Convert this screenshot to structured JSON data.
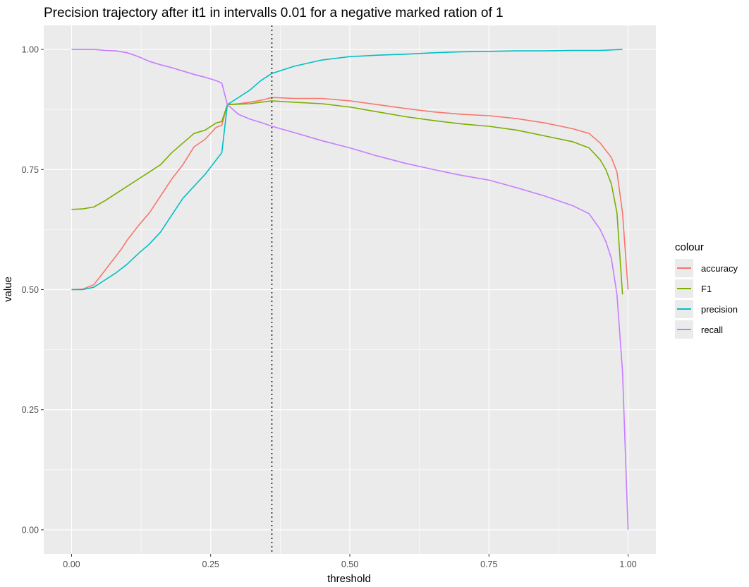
{
  "chart_data": {
    "type": "line",
    "title": "Precision trajectory after it1 in intervalls 0.01 for a negative marked ration of 1",
    "xlabel": "threshold",
    "ylabel": "value",
    "xlim": [
      -0.05,
      1.05
    ],
    "ylim": [
      -0.05,
      1.05
    ],
    "x_ticks": [
      0,
      0.25,
      0.5,
      0.75,
      1
    ],
    "x_tick_labels": [
      "0.00",
      "0.25",
      "0.50",
      "0.75",
      "1.00"
    ],
    "y_ticks": [
      0,
      0.25,
      0.5,
      0.75,
      1
    ],
    "y_tick_labels": [
      "0.00",
      "0.25",
      "0.50",
      "0.75",
      "1.00"
    ],
    "vline": 0.36,
    "legend": {
      "title": "colour",
      "position": "right",
      "entries": [
        "accuracy",
        "F1",
        "precision",
        "recall"
      ]
    },
    "series": [
      {
        "name": "accuracy",
        "color": "#F8766D",
        "points": [
          [
            0,
            0.5
          ],
          [
            0.02,
            0.501
          ],
          [
            0.04,
            0.51
          ],
          [
            0.05,
            0.525
          ],
          [
            0.07,
            0.555
          ],
          [
            0.09,
            0.585
          ],
          [
            0.1,
            0.603
          ],
          [
            0.12,
            0.633
          ],
          [
            0.14,
            0.66
          ],
          [
            0.16,
            0.695
          ],
          [
            0.18,
            0.73
          ],
          [
            0.2,
            0.76
          ],
          [
            0.22,
            0.797
          ],
          [
            0.24,
            0.813
          ],
          [
            0.26,
            0.838
          ],
          [
            0.27,
            0.842
          ],
          [
            0.28,
            0.885
          ],
          [
            0.3,
            0.887
          ],
          [
            0.32,
            0.89
          ],
          [
            0.34,
            0.894
          ],
          [
            0.36,
            0.9
          ],
          [
            0.4,
            0.898
          ],
          [
            0.45,
            0.898
          ],
          [
            0.5,
            0.893
          ],
          [
            0.55,
            0.885
          ],
          [
            0.6,
            0.877
          ],
          [
            0.65,
            0.87
          ],
          [
            0.7,
            0.865
          ],
          [
            0.75,
            0.862
          ],
          [
            0.8,
            0.856
          ],
          [
            0.85,
            0.847
          ],
          [
            0.9,
            0.835
          ],
          [
            0.93,
            0.825
          ],
          [
            0.95,
            0.805
          ],
          [
            0.97,
            0.775
          ],
          [
            0.98,
            0.745
          ],
          [
            0.99,
            0.66
          ],
          [
            1.0,
            0.5
          ]
        ]
      },
      {
        "name": "F1",
        "color": "#7CAE00",
        "points": [
          [
            0,
            0.667
          ],
          [
            0.02,
            0.668
          ],
          [
            0.04,
            0.672
          ],
          [
            0.06,
            0.685
          ],
          [
            0.08,
            0.7
          ],
          [
            0.1,
            0.715
          ],
          [
            0.12,
            0.73
          ],
          [
            0.14,
            0.745
          ],
          [
            0.16,
            0.76
          ],
          [
            0.18,
            0.785
          ],
          [
            0.2,
            0.805
          ],
          [
            0.22,
            0.825
          ],
          [
            0.24,
            0.832
          ],
          [
            0.26,
            0.847
          ],
          [
            0.27,
            0.85
          ],
          [
            0.28,
            0.885
          ],
          [
            0.3,
            0.886
          ],
          [
            0.32,
            0.887
          ],
          [
            0.34,
            0.89
          ],
          [
            0.36,
            0.893
          ],
          [
            0.4,
            0.89
          ],
          [
            0.45,
            0.887
          ],
          [
            0.5,
            0.88
          ],
          [
            0.55,
            0.87
          ],
          [
            0.6,
            0.86
          ],
          [
            0.65,
            0.852
          ],
          [
            0.7,
            0.845
          ],
          [
            0.75,
            0.84
          ],
          [
            0.8,
            0.832
          ],
          [
            0.85,
            0.82
          ],
          [
            0.9,
            0.808
          ],
          [
            0.93,
            0.795
          ],
          [
            0.95,
            0.77
          ],
          [
            0.96,
            0.75
          ],
          [
            0.97,
            0.72
          ],
          [
            0.98,
            0.66
          ],
          [
            0.99,
            0.49
          ]
        ]
      },
      {
        "name": "precision",
        "color": "#00BFC4",
        "points": [
          [
            0,
            0.5
          ],
          [
            0.02,
            0.5
          ],
          [
            0.04,
            0.505
          ],
          [
            0.06,
            0.52
          ],
          [
            0.08,
            0.535
          ],
          [
            0.1,
            0.553
          ],
          [
            0.12,
            0.575
          ],
          [
            0.14,
            0.595
          ],
          [
            0.16,
            0.62
          ],
          [
            0.18,
            0.655
          ],
          [
            0.2,
            0.69
          ],
          [
            0.22,
            0.715
          ],
          [
            0.24,
            0.74
          ],
          [
            0.26,
            0.77
          ],
          [
            0.27,
            0.785
          ],
          [
            0.28,
            0.885
          ],
          [
            0.3,
            0.9
          ],
          [
            0.32,
            0.915
          ],
          [
            0.34,
            0.935
          ],
          [
            0.36,
            0.95
          ],
          [
            0.4,
            0.965
          ],
          [
            0.45,
            0.978
          ],
          [
            0.5,
            0.985
          ],
          [
            0.55,
            0.988
          ],
          [
            0.6,
            0.99
          ],
          [
            0.65,
            0.993
          ],
          [
            0.7,
            0.995
          ],
          [
            0.75,
            0.996
          ],
          [
            0.8,
            0.997
          ],
          [
            0.85,
            0.997
          ],
          [
            0.9,
            0.998
          ],
          [
            0.95,
            0.998
          ],
          [
            0.99,
            1.0
          ]
        ]
      },
      {
        "name": "recall",
        "color": "#C77CFF",
        "points": [
          [
            0,
            1.0
          ],
          [
            0.02,
            1.0
          ],
          [
            0.04,
            1.0
          ],
          [
            0.06,
            0.998
          ],
          [
            0.08,
            0.997
          ],
          [
            0.1,
            0.993
          ],
          [
            0.12,
            0.985
          ],
          [
            0.14,
            0.975
          ],
          [
            0.16,
            0.968
          ],
          [
            0.18,
            0.962
          ],
          [
            0.2,
            0.955
          ],
          [
            0.22,
            0.948
          ],
          [
            0.24,
            0.942
          ],
          [
            0.26,
            0.935
          ],
          [
            0.27,
            0.93
          ],
          [
            0.28,
            0.885
          ],
          [
            0.3,
            0.865
          ],
          [
            0.32,
            0.855
          ],
          [
            0.34,
            0.848
          ],
          [
            0.36,
            0.84
          ],
          [
            0.4,
            0.827
          ],
          [
            0.45,
            0.81
          ],
          [
            0.5,
            0.795
          ],
          [
            0.55,
            0.778
          ],
          [
            0.6,
            0.763
          ],
          [
            0.65,
            0.75
          ],
          [
            0.7,
            0.738
          ],
          [
            0.75,
            0.728
          ],
          [
            0.8,
            0.712
          ],
          [
            0.85,
            0.695
          ],
          [
            0.9,
            0.675
          ],
          [
            0.93,
            0.658
          ],
          [
            0.95,
            0.625
          ],
          [
            0.96,
            0.6
          ],
          [
            0.97,
            0.565
          ],
          [
            0.98,
            0.49
          ],
          [
            0.99,
            0.33
          ],
          [
            1.0,
            0.0
          ]
        ]
      }
    ]
  }
}
